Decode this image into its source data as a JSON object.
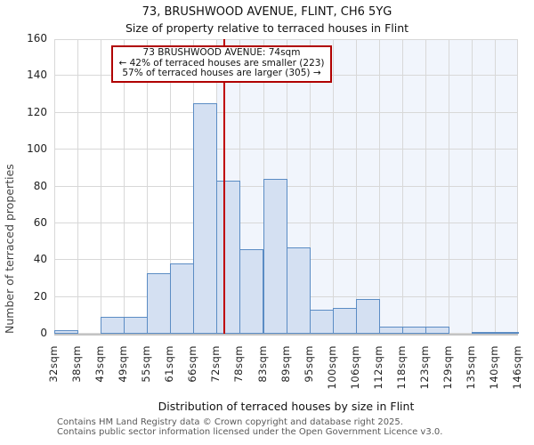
{
  "header": {
    "title_line1": "73, BRUSHWOOD AVENUE, FLINT, CH6 5YG",
    "title_line2": "Size of property relative to terraced houses in Flint"
  },
  "annotation": {
    "line1": "73 BRUSHWOOD AVENUE: 74sqm",
    "line2": "← 42% of terraced houses are smaller (223)",
    "line3": "57% of terraced houses are larger (305) →"
  },
  "chart_data": {
    "type": "bar",
    "title": "73, BRUSHWOOD AVENUE, FLINT, CH6 5YG — Size of property relative to terraced houses in Flint",
    "categories": [
      "32sqm",
      "38sqm",
      "43sqm",
      "49sqm",
      "55sqm",
      "61sqm",
      "66sqm",
      "72sqm",
      "78sqm",
      "83sqm",
      "89sqm",
      "95sqm",
      "100sqm",
      "106sqm",
      "112sqm",
      "118sqm",
      "123sqm",
      "129sqm",
      "135sqm",
      "140sqm",
      "146sqm"
    ],
    "values": [
      2,
      0,
      9,
      9,
      33,
      38,
      125,
      83,
      46,
      84,
      47,
      13,
      14,
      19,
      4,
      4,
      4,
      0,
      1,
      1
    ],
    "xlabel": "Distribution of terraced houses by size in Flint",
    "ylabel": "Number of terraced properties",
    "ylim": [
      0,
      160
    ],
    "yticks": [
      0,
      20,
      40,
      60,
      80,
      100,
      120,
      140,
      160
    ],
    "grid": "on",
    "legend": "none",
    "marker": {
      "value_label": "74sqm",
      "position_bins": 7.333,
      "smaller_pct": 42,
      "smaller_count": 223,
      "larger_pct": 57,
      "larger_count": 305
    },
    "shade_from_bin": 7,
    "colors": {
      "bar_fill": "#d4e0f2",
      "bar_edge": "#5b8cc4",
      "marker_line": "#bf0000",
      "annotation_border": "#b00000",
      "shade_region": "#f1f5fc",
      "gridline": "#d8d8d8"
    }
  },
  "footer": {
    "line1": "Contains HM Land Registry data © Crown copyright and database right 2025.",
    "line2": "Contains public sector information licensed under the Open Government Licence v3.0."
  }
}
